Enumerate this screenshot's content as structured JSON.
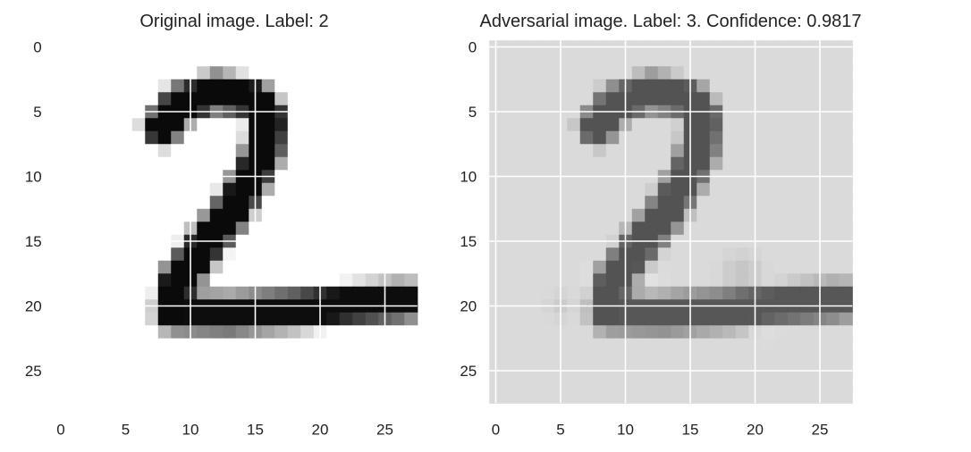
{
  "chart_data": [
    {
      "type": "heatmap",
      "title": "Original image. Label: 2",
      "xlabel": "",
      "ylabel": "",
      "x_ticks": [
        "0",
        "5",
        "10",
        "15",
        "20",
        "25"
      ],
      "y_ticks": [
        "0",
        "5",
        "10",
        "15",
        "20",
        "25"
      ],
      "xlim": [
        -0.5,
        27.5
      ],
      "ylim": [
        27.5,
        -0.5
      ],
      "grid": true,
      "colormap": "gray_r",
      "background": "#ffffff",
      "strokes": [
        {
          "points": [
            [
              7.8,
              6.2
            ],
            [
              9.2,
              4.4
            ],
            [
              12,
              3.5
            ],
            [
              14.8,
              4
            ],
            [
              16,
              5.5
            ],
            [
              15.7,
              8
            ],
            [
              14.2,
              11
            ],
            [
              12.8,
              13.2
            ],
            [
              11.2,
              15.2
            ],
            [
              10,
              16.8
            ],
            [
              9,
              18.2
            ],
            [
              8.7,
              20.5
            ]
          ],
          "width": 1.6,
          "value": 0.96
        },
        {
          "points": [
            [
              8.7,
              20.5
            ],
            [
              13,
              20.6
            ],
            [
              18,
              20.3
            ],
            [
              22,
              19.9
            ],
            [
              26.5,
              19.6
            ]
          ],
          "width": 1.6,
          "value": 0.95
        }
      ]
    },
    {
      "type": "heatmap",
      "title": "Adversarial image. Label: 3. Confidence: 0.9817",
      "xlabel": "",
      "ylabel": "",
      "x_ticks": [
        "0",
        "5",
        "10",
        "15",
        "20",
        "25"
      ],
      "y_ticks": [
        "0",
        "5",
        "10",
        "15",
        "20",
        "25"
      ],
      "xlim": [
        -0.5,
        27.5
      ],
      "ylim": [
        27.5,
        -0.5
      ],
      "grid": true,
      "colormap": "gray_r",
      "background": "#dadada",
      "strokes": [
        {
          "points": [
            [
              7.8,
              6.2
            ],
            [
              9.2,
              4.4
            ],
            [
              12,
              3.5
            ],
            [
              14.8,
              4
            ],
            [
              16,
              5.5
            ],
            [
              15.7,
              8
            ],
            [
              14.2,
              11
            ],
            [
              12.8,
              13.2
            ],
            [
              11.2,
              15.2
            ],
            [
              10,
              16.8
            ],
            [
              9,
              18.2
            ],
            [
              8.7,
              20.5
            ]
          ],
          "width": 1.6,
          "value": 0.62
        },
        {
          "points": [
            [
              8.7,
              20.5
            ],
            [
              13,
              20.6
            ],
            [
              18,
              20.3
            ],
            [
              22,
              19.9
            ],
            [
              26.5,
              19.6
            ]
          ],
          "width": 1.6,
          "value": 0.6
        }
      ],
      "blobs": [
        {
          "center": [
            12,
            18
          ],
          "radius": 1.6,
          "value": -0.18
        },
        {
          "center": [
            7,
            17.5
          ],
          "radius": 1.2,
          "value": -0.12
        },
        {
          "center": [
            19,
            17.5
          ],
          "radius": 2.2,
          "value": 0.12
        },
        {
          "center": [
            5,
            20
          ],
          "radius": 1.5,
          "value": 0.07
        },
        {
          "center": [
            21,
            22
          ],
          "radius": 1.5,
          "value": -0.08
        }
      ]
    }
  ]
}
